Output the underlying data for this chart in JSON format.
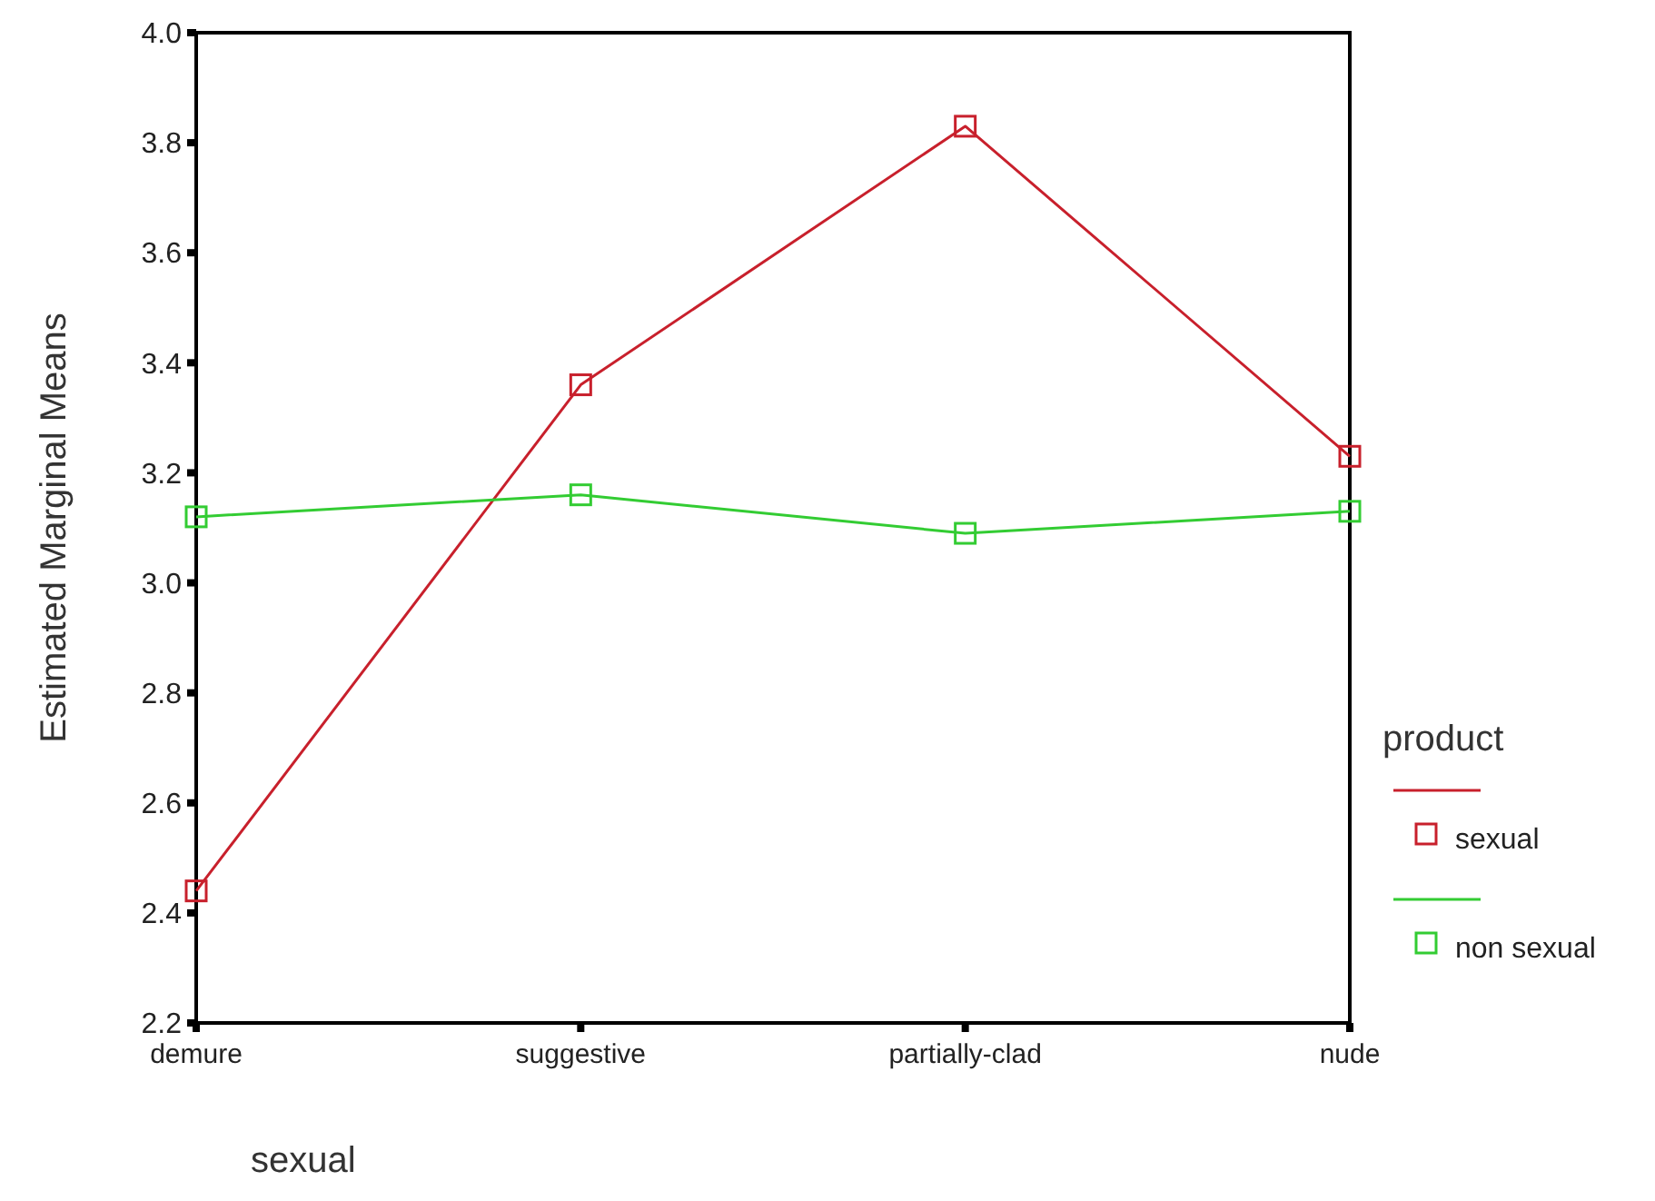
{
  "chart_data": {
    "type": "line",
    "xlabel": "sexual",
    "ylabel": "Estimated Marginal Means",
    "legend_title": "product",
    "legend": "right",
    "marker": "square",
    "categories": [
      "demure",
      "suggestive",
      "partially-clad",
      "nude"
    ],
    "ylim": [
      2.2,
      4.0
    ],
    "yticks": [
      {
        "value": 2.2,
        "label": "2.2"
      },
      {
        "value": 2.4,
        "label": "2.4"
      },
      {
        "value": 2.6,
        "label": "2.6"
      },
      {
        "value": 2.8,
        "label": "2.8"
      },
      {
        "value": 3.0,
        "label": "3.0"
      },
      {
        "value": 3.2,
        "label": "3.2"
      },
      {
        "value": 3.4,
        "label": "3.4"
      },
      {
        "value": 3.6,
        "label": "3.6"
      },
      {
        "value": 3.8,
        "label": "3.8"
      },
      {
        "value": 4.0,
        "label": "4.0"
      }
    ],
    "series": [
      {
        "name": "sexual",
        "color": "#c8202c",
        "values": [
          2.44,
          3.36,
          3.83,
          3.23
        ]
      },
      {
        "name": "non sexual",
        "color": "#33cc33",
        "values": [
          3.12,
          3.16,
          3.09,
          3.13
        ]
      }
    ]
  }
}
